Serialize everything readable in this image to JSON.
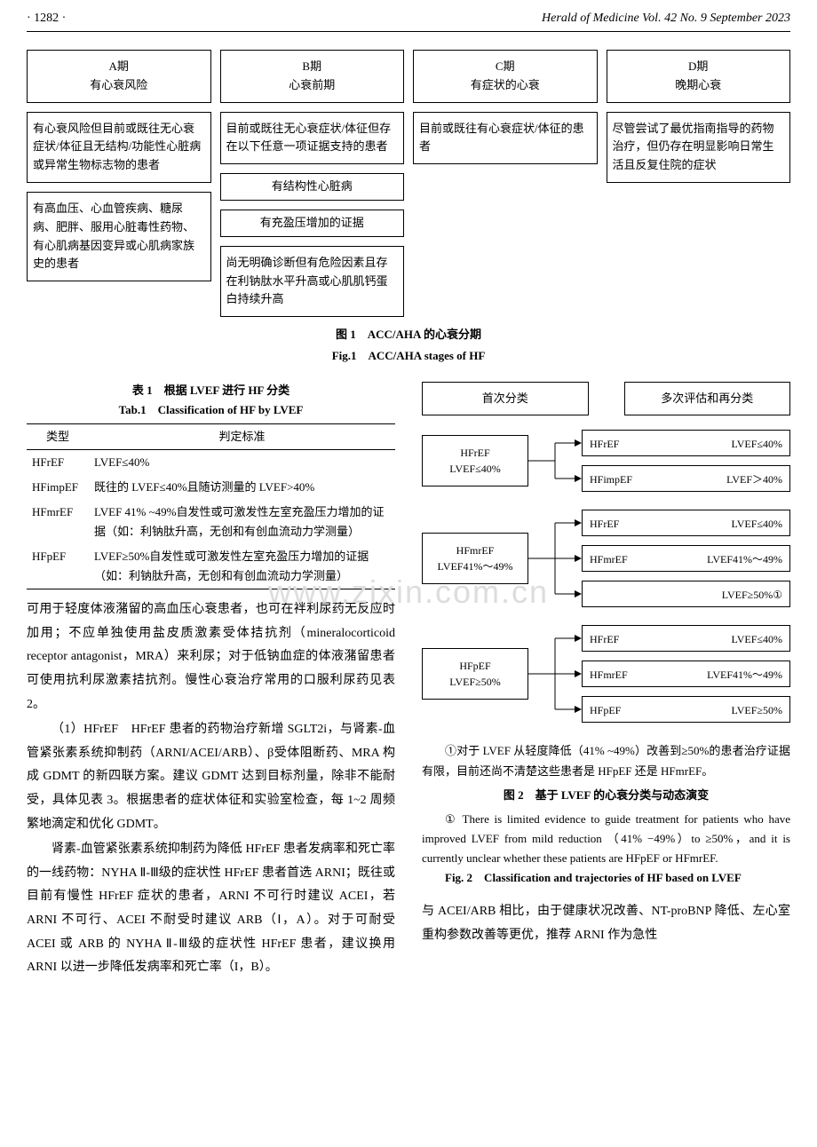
{
  "header": {
    "page_number": "· 1282 ·",
    "journal": "Herald of Medicine Vol. 42 No. 9 September 2023"
  },
  "watermark": "www.zixin.com.cn",
  "fig1": {
    "stages": [
      {
        "title_line1": "A期",
        "title_line2": "有心衰风险",
        "boxes": [
          "有心衰风险但目前或既往无心衰症状/体征且无结构/功能性心脏病或异常生物标志物的患者",
          "有高血压、心血管疾病、糖尿病、肥胖、服用心脏毒性药物、有心肌病基因变异或心肌病家族史的患者"
        ]
      },
      {
        "title_line1": "B期",
        "title_line2": "心衰前期",
        "boxes": [
          "目前或既往无心衰症状/体征但存在以下任意一项证据支持的患者",
          "有结构性心脏病",
          "有充盈压增加的证据",
          "尚无明确诊断但有危险因素且存在利钠肽水平升高或心肌肌钙蛋白持续升高"
        ]
      },
      {
        "title_line1": "C期",
        "title_line2": "有症状的心衰",
        "boxes": [
          "目前或既往有心衰症状/体征的患者"
        ]
      },
      {
        "title_line1": "D期",
        "title_line2": "晚期心衰",
        "boxes": [
          "尽管尝试了最优指南指导的药物治疗，但仍存在明显影响日常生活且反复住院的症状"
        ]
      }
    ],
    "caption_zh": "图 1　ACC/AHA 的心衰分期",
    "caption_en": "Fig.1　ACC/AHA stages of HF"
  },
  "tab1": {
    "caption_zh": "表 1　根据 LVEF 进行 HF 分类",
    "caption_en": "Tab.1　Classification of HF by LVEF",
    "columns": [
      "类型",
      "判定标准"
    ],
    "rows": [
      [
        "HFrEF",
        "LVEF≤40%"
      ],
      [
        "HFimpEF",
        "既往的 LVEF≤40%且随访测量的 LVEF>40%"
      ],
      [
        "HFmrEF",
        "LVEF 41% ~49%自发性或可激发性左室充盈压力增加的证据（如：利钠肽升高，无创和有创血流动力学测量）"
      ],
      [
        "HFpEF",
        "LVEF≥50%自发性或可激发性左室充盈压力增加的证据（如：利钠肽升高，无创和有创血流动力学测量）"
      ]
    ]
  },
  "body_left": {
    "p1": "可用于轻度体液潴留的高血压心衰患者，也可在袢利尿药无反应时加用；不应单独使用盐皮质激素受体拮抗剂（mineralocorticoid receptor antagonist，MRA）来利尿；对于低钠血症的体液潴留患者可使用抗利尿激素拮抗剂。慢性心衰治疗常用的口服利尿药见表 2。",
    "p2": "（1）HFrEF　HFrEF 患者的药物治疗新增 SGLT2i，与肾素-血管紧张素系统抑制药（ARNI/ACEI/ARB）、β受体阻断药、MRA 构成 GDMT 的新四联方案。建议 GDMT 达到目标剂量，除非不能耐受，具体见表 3。根据患者的症状体征和实验室检查，每 1~2 周频繁地滴定和优化 GDMT。",
    "p3": "肾素-血管紧张素系统抑制药为降低 HFrEF 患者发病率和死亡率的一线药物：NYHA Ⅱ-Ⅲ级的症状性 HFrEF 患者首选 ARNI；既往或目前有慢性 HFrEF 症状的患者，ARNI 不可行时建议 ACEI，若 ARNI 不可行、ACEI 不耐受时建议 ARB（Ⅰ，A）。对于可耐受 ACEI 或 ARB 的 NYHA Ⅱ-Ⅲ级的症状性 HFrEF 患者，建议换用 ARNI 以进一步降低发病率和死亡率（I，B）。"
  },
  "fig2": {
    "header_left": "首次分类",
    "header_right": "多次评估和再分类",
    "groups": [
      {
        "left_line1": "HFrEF",
        "left_line2": "LVEF≤40%",
        "rights": [
          {
            "label": "HFrEF",
            "value": "LVEF≤40%"
          },
          {
            "label": "HFimpEF",
            "value": "LVEF＞40%"
          }
        ]
      },
      {
        "left_line1": "HFmrEF",
        "left_line2": "LVEF41%～49%",
        "rights": [
          {
            "label": "HFrEF",
            "value": "LVEF≤40%"
          },
          {
            "label": "HFmrEF",
            "value": "LVEF41%～49%"
          },
          {
            "label": "",
            "value": "LVEF≥50%①"
          }
        ]
      },
      {
        "left_line1": "HFpEF",
        "left_line2": "LVEF≥50%",
        "rights": [
          {
            "label": "HFrEF",
            "value": "LVEF≤40%"
          },
          {
            "label": "HFmrEF",
            "value": "LVEF41%～49%"
          },
          {
            "label": "HFpEF",
            "value": "LVEF≥50%"
          }
        ]
      }
    ],
    "note_zh": "①对于 LVEF 从轻度降低（41% ~49%）改善到≥50%的患者治疗证据有限，目前还尚不清楚这些患者是 HFpEF 还是 HFmrEF。",
    "caption_zh": "图 2　基于 LVEF 的心衰分类与动态演变",
    "note_en": "① There is limited evidence to guide treatment for patients who have improved LVEF from mild reduction （41% −49%）to ≥50%，and it is currently unclear whether these patients are HFpEF or HFmrEF.",
    "caption_en": "Fig. 2　Classification and trajectories of HF based on LVEF"
  },
  "body_right_bottom": {
    "p1": "与 ACEI/ARB 相比，由于健康状况改善、NT-proBNP 降低、左心室重构参数改善等更优，推荐 ARNI 作为急性"
  }
}
